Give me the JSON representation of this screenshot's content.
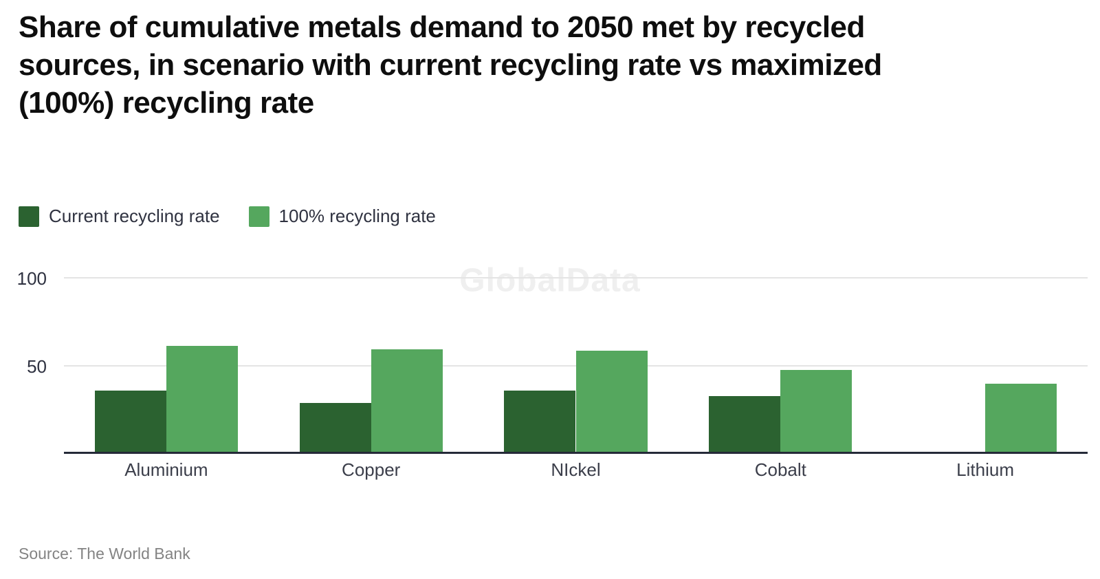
{
  "title_lines": [
    "Share of cumulative metals demand to 2050 met by recycled",
    "sources, in scenario with current recycling rate vs maximized",
    "(100%) recycling rate"
  ],
  "watermark": "GlobalData",
  "source": "Source: The World Bank",
  "colors": {
    "current": "#2b6230",
    "max": "#55a75e",
    "axis": "#252a38",
    "gridline": "#e4e4e4"
  },
  "legend": [
    {
      "label": "Current recycling rate",
      "color": "#2b6230"
    },
    {
      "label": "100% recycling rate",
      "color": "#55a75e"
    }
  ],
  "chart_data": {
    "type": "bar",
    "title": "Share of cumulative metals demand to 2050 met by recycled sources, in scenario with current recycling rate vs maximized (100%) recycling rate",
    "categories": [
      "Aluminium",
      "Copper",
      "NIckel",
      "Cobalt",
      "Lithium"
    ],
    "series": [
      {
        "name": "Current recycling rate",
        "color": "#2b6230",
        "values": [
          35,
          28,
          35,
          32,
          0
        ]
      },
      {
        "name": "100% recycling rate",
        "color": "#55a75e",
        "values": [
          61,
          59,
          58,
          47,
          39
        ]
      }
    ],
    "xlabel": "",
    "ylabel": "",
    "ylim": [
      0,
      100
    ],
    "yticks": [
      100,
      50
    ],
    "grid": true,
    "legend_position": "top-left"
  }
}
